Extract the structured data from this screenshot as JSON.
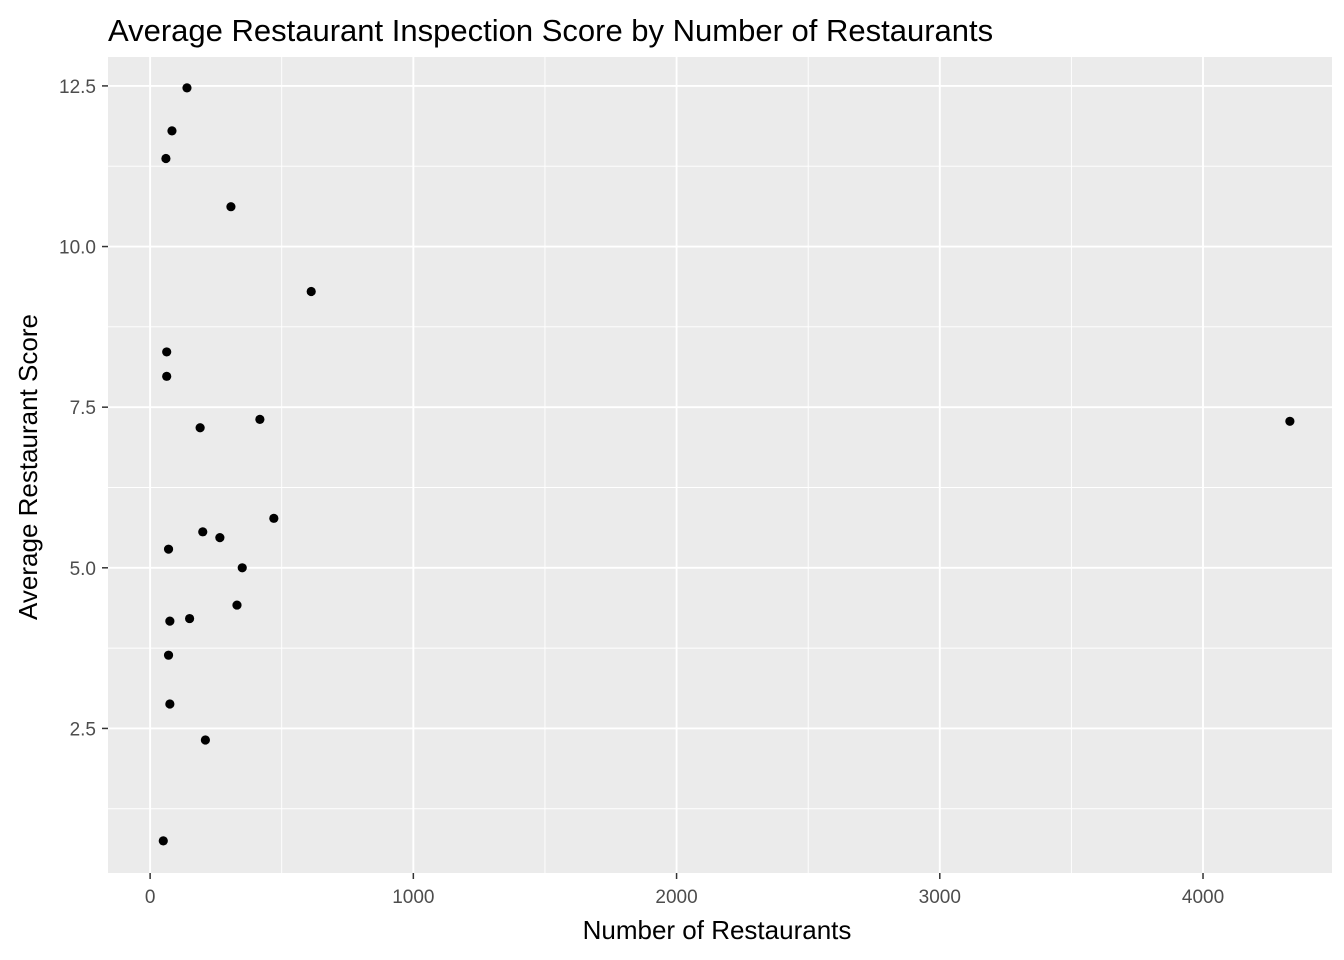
{
  "chart_data": {
    "type": "scatter",
    "title": "Average Restaurant Inspection Score by Number of Restaurants",
    "xlabel": "Number of Restaurants",
    "ylabel": "Average Restaurant Score",
    "xlim": [
      -160,
      4490
    ],
    "ylim": [
      0.25,
      12.95
    ],
    "x_ticks": [
      0,
      1000,
      2000,
      3000,
      4000
    ],
    "x_tick_labels": [
      "0",
      "1000",
      "2000",
      "3000",
      "4000"
    ],
    "y_ticks": [
      2.5,
      5.0,
      7.5,
      10.0,
      12.5
    ],
    "y_tick_labels": [
      "2.5",
      "5.0",
      "7.5",
      "10.0",
      "12.5"
    ],
    "grid": true,
    "legend": "none",
    "colors": {
      "panel": "#ebebeb",
      "grid": "#ffffff",
      "point": "#000000",
      "tick_text": "#4d4d4d"
    },
    "points": [
      {
        "x": 140,
        "y": 12.47
      },
      {
        "x": 83,
        "y": 11.8
      },
      {
        "x": 60,
        "y": 11.37
      },
      {
        "x": 307,
        "y": 10.62
      },
      {
        "x": 612,
        "y": 9.3
      },
      {
        "x": 63,
        "y": 8.36
      },
      {
        "x": 63,
        "y": 7.98
      },
      {
        "x": 417,
        "y": 7.31
      },
      {
        "x": 4330,
        "y": 7.28
      },
      {
        "x": 190,
        "y": 7.18
      },
      {
        "x": 470,
        "y": 5.77
      },
      {
        "x": 200,
        "y": 5.56
      },
      {
        "x": 265,
        "y": 5.47
      },
      {
        "x": 70,
        "y": 5.29
      },
      {
        "x": 350,
        "y": 5.0
      },
      {
        "x": 330,
        "y": 4.42
      },
      {
        "x": 150,
        "y": 4.21
      },
      {
        "x": 75,
        "y": 4.17
      },
      {
        "x": 70,
        "y": 3.64
      },
      {
        "x": 75,
        "y": 2.88
      },
      {
        "x": 210,
        "y": 2.32
      },
      {
        "x": 50,
        "y": 0.75
      }
    ]
  }
}
